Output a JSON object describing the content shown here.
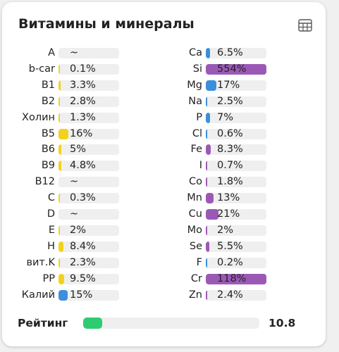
{
  "header": {
    "title": "Витамины и минералы"
  },
  "left": [
    {
      "name": "A",
      "value": null,
      "label": "~",
      "color": "#f2d21b"
    },
    {
      "name": "b-car",
      "value": 0.1,
      "label": "0.1%",
      "color": "#f2d21b"
    },
    {
      "name": "B1",
      "value": 3.3,
      "label": "3.3%",
      "color": "#f2d21b"
    },
    {
      "name": "B2",
      "value": 2.8,
      "label": "2.8%",
      "color": "#f2d21b"
    },
    {
      "name": "Холин",
      "value": 1.3,
      "label": "1.3%",
      "color": "#f2d21b"
    },
    {
      "name": "B5",
      "value": 16,
      "label": "16%",
      "color": "#f2d21b"
    },
    {
      "name": "B6",
      "value": 5,
      "label": "5%",
      "color": "#f2d21b"
    },
    {
      "name": "B9",
      "value": 4.8,
      "label": "4.8%",
      "color": "#f2d21b"
    },
    {
      "name": "B12",
      "value": null,
      "label": "~",
      "color": "#f2d21b"
    },
    {
      "name": "C",
      "value": 0.3,
      "label": "0.3%",
      "color": "#f2d21b"
    },
    {
      "name": "D",
      "value": null,
      "label": "~",
      "color": "#f2d21b"
    },
    {
      "name": "E",
      "value": 2,
      "label": "2%",
      "color": "#f2d21b"
    },
    {
      "name": "H",
      "value": 8.4,
      "label": "8.4%",
      "color": "#f2d21b"
    },
    {
      "name": "вит.K",
      "value": 2.3,
      "label": "2.3%",
      "color": "#f2d21b"
    },
    {
      "name": "PP",
      "value": 9.5,
      "label": "9.5%",
      "color": "#f2d21b"
    },
    {
      "name": "Калий",
      "value": 15,
      "label": "15%",
      "color": "#3b8fdc"
    }
  ],
  "right": [
    {
      "name": "Ca",
      "value": 6.5,
      "label": "6.5%",
      "color": "#3b8fdc"
    },
    {
      "name": "Si",
      "value": 554,
      "label": "554%",
      "color": "#9b59b6"
    },
    {
      "name": "Mg",
      "value": 17,
      "label": "17%",
      "color": "#3b8fdc"
    },
    {
      "name": "Na",
      "value": 2.5,
      "label": "2.5%",
      "color": "#3b8fdc"
    },
    {
      "name": "P",
      "value": 7,
      "label": "7%",
      "color": "#3b8fdc"
    },
    {
      "name": "Cl",
      "value": 0.6,
      "label": "0.6%",
      "color": "#3b8fdc"
    },
    {
      "name": "Fe",
      "value": 8.3,
      "label": "8.3%",
      "color": "#9b59b6"
    },
    {
      "name": "I",
      "value": 0.7,
      "label": "0.7%",
      "color": "#9b59b6"
    },
    {
      "name": "Co",
      "value": 1.8,
      "label": "1.8%",
      "color": "#9b59b6"
    },
    {
      "name": "Mn",
      "value": 13,
      "label": "13%",
      "color": "#9b59b6"
    },
    {
      "name": "Cu",
      "value": 21,
      "label": "21%",
      "color": "#9b59b6"
    },
    {
      "name": "Mo",
      "value": 2,
      "label": "2%",
      "color": "#9b59b6"
    },
    {
      "name": "Se",
      "value": 5.5,
      "label": "5.5%",
      "color": "#9b59b6"
    },
    {
      "name": "F",
      "value": 0.2,
      "label": "0.2%",
      "color": "#3b8fdc"
    },
    {
      "name": "Cr",
      "value": 118,
      "label": "118%",
      "color": "#9b59b6"
    },
    {
      "name": "Zn",
      "value": 2.4,
      "label": "2.4%",
      "color": "#9b59b6"
    }
  ],
  "rating": {
    "name": "Рейтинг",
    "value": 10.8,
    "color": "#2ecc71"
  }
}
